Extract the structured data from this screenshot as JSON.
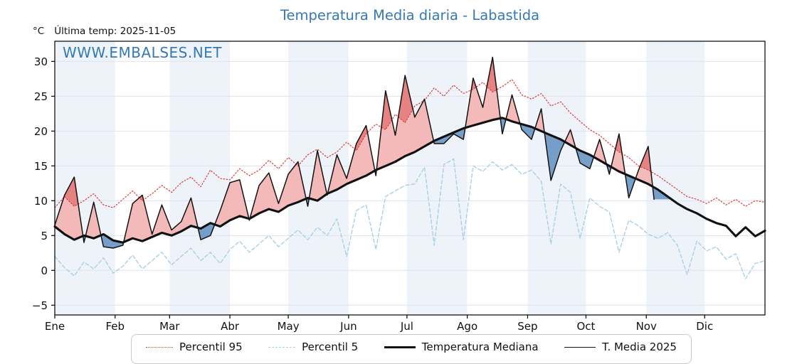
{
  "header": {
    "title": "Temperatura Media diaria - Labastida",
    "unit_label": "°C",
    "last_temp_label": "Última temp: 2025-11-05",
    "watermark": "WWW.EMBALSES.NET"
  },
  "colors": {
    "title": "#3579b4",
    "watermark": "#3579b4",
    "p95_line": "#dd3c3c",
    "p5_line": "#a8d0e6",
    "median_line": "#111111",
    "t2025_line": "#111111",
    "warm_fill": "#f3b3b1",
    "hot_fill": "#e47d7c",
    "cool_fill": "#5f8fbe",
    "band_fill": "#eef3fa",
    "grid": "#dfe3ec",
    "frame": "#000000"
  },
  "legend": {
    "items": [
      {
        "key": "p95",
        "label": "Percentil 95",
        "style": "dotted-red"
      },
      {
        "key": "p5",
        "label": "Percentil 5",
        "style": "dashed-lightblue"
      },
      {
        "key": "median",
        "label": "Temperatura Mediana",
        "style": "solid-thick-black"
      },
      {
        "key": "t2025",
        "label": "T. Media 2025",
        "style": "solid-thin-black"
      }
    ]
  },
  "chart_data": {
    "type": "line",
    "title": "Temperatura Media diaria - Labastida",
    "ylabel": "°C",
    "x_unit": "day_of_year",
    "xlim": [
      1,
      366
    ],
    "ylim": [
      -6.4,
      32.9
    ],
    "grid": true,
    "legend_position": "bottom",
    "yticks": [
      {
        "v": -5,
        "label": "−5"
      },
      {
        "v": 0,
        "label": "0"
      },
      {
        "v": 5,
        "label": "5"
      },
      {
        "v": 10,
        "label": "10"
      },
      {
        "v": 15,
        "label": "15"
      },
      {
        "v": 20,
        "label": "20"
      },
      {
        "v": 25,
        "label": "25"
      },
      {
        "v": 30,
        "label": "30"
      }
    ],
    "months": [
      {
        "abbr": "Ene",
        "start_day": 1
      },
      {
        "abbr": "Feb",
        "start_day": 32
      },
      {
        "abbr": "Mar",
        "start_day": 60
      },
      {
        "abbr": "Abr",
        "start_day": 91
      },
      {
        "abbr": "May",
        "start_day": 121
      },
      {
        "abbr": "Jun",
        "start_day": 152
      },
      {
        "abbr": "Jul",
        "start_day": 182
      },
      {
        "abbr": "Ago",
        "start_day": 213
      },
      {
        "abbr": "Sep",
        "start_day": 244
      },
      {
        "abbr": "Oct",
        "start_day": 274
      },
      {
        "abbr": "Nov",
        "start_day": 305
      },
      {
        "abbr": "Dic",
        "start_day": 335
      }
    ],
    "series": [
      {
        "name": "Percentil 95",
        "style": "dotted",
        "days": [
          1,
          6,
          11,
          16,
          21,
          26,
          31,
          36,
          41,
          46,
          51,
          56,
          61,
          66,
          71,
          76,
          81,
          86,
          91,
          96,
          101,
          106,
          111,
          116,
          121,
          126,
          131,
          136,
          141,
          146,
          151,
          156,
          161,
          166,
          171,
          176,
          181,
          186,
          191,
          196,
          201,
          206,
          211,
          216,
          221,
          226,
          231,
          236,
          241,
          246,
          251,
          256,
          261,
          266,
          271,
          276,
          281,
          286,
          291,
          296,
          301,
          306,
          311,
          316,
          321,
          326,
          331,
          336,
          341,
          346,
          351,
          356,
          361,
          366
        ],
        "values": [
          9.0,
          10.6,
          9.2,
          10.0,
          11.0,
          9.4,
          9.0,
          10.2,
          11.4,
          10.0,
          11.0,
          12.2,
          11.2,
          12.6,
          13.4,
          12.0,
          14.4,
          13.2,
          13.0,
          14.6,
          13.6,
          14.4,
          15.8,
          14.6,
          16.2,
          15.0,
          16.6,
          17.4,
          16.2,
          17.0,
          18.4,
          17.2,
          19.6,
          21.0,
          20.2,
          22.4,
          21.2,
          23.6,
          24.4,
          26.2,
          25.0,
          26.6,
          25.4,
          26.0,
          27.0,
          25.6,
          26.4,
          27.4,
          25.2,
          24.6,
          25.4,
          23.6,
          24.2,
          22.6,
          21.4,
          20.2,
          19.4,
          18.2,
          17.0,
          16.2,
          15.0,
          14.4,
          13.6,
          12.6,
          11.6,
          10.6,
          10.2,
          9.6,
          10.4,
          9.4,
          10.2,
          9.2,
          10.0,
          9.8
        ]
      },
      {
        "name": "Percentil 5",
        "style": "dashed",
        "days": [
          1,
          6,
          11,
          16,
          21,
          26,
          31,
          36,
          41,
          46,
          51,
          56,
          61,
          66,
          71,
          76,
          81,
          86,
          91,
          96,
          101,
          106,
          111,
          116,
          121,
          126,
          131,
          136,
          141,
          146,
          151,
          156,
          161,
          166,
          171,
          176,
          181,
          186,
          191,
          196,
          201,
          206,
          211,
          216,
          221,
          226,
          231,
          236,
          241,
          246,
          251,
          256,
          261,
          266,
          271,
          276,
          281,
          286,
          291,
          296,
          301,
          306,
          311,
          316,
          321,
          326,
          331,
          336,
          341,
          346,
          351,
          356,
          361,
          366
        ],
        "values": [
          2.0,
          0.4,
          -0.8,
          1.2,
          0.2,
          1.8,
          -0.4,
          0.6,
          2.2,
          0.2,
          1.4,
          2.6,
          0.8,
          2.0,
          3.2,
          1.4,
          2.6,
          1.0,
          3.0,
          4.2,
          2.6,
          3.8,
          5.0,
          3.4,
          4.6,
          5.8,
          4.4,
          6.2,
          5.0,
          7.4,
          2.0,
          8.6,
          9.4,
          3.0,
          10.6,
          11.4,
          12.2,
          12.4,
          14.8,
          3.6,
          15.2,
          16.0,
          4.4,
          15.0,
          14.2,
          15.6,
          14.4,
          15.2,
          13.8,
          14.4,
          12.8,
          3.8,
          12.4,
          11.2,
          4.6,
          10.4,
          9.2,
          8.4,
          2.6,
          7.2,
          6.4,
          5.2,
          4.6,
          5.4,
          3.6,
          -0.6,
          4.2,
          2.8,
          3.4,
          1.6,
          2.4,
          -1.2,
          1.0,
          1.4
        ]
      },
      {
        "name": "Temperatura Mediana",
        "style": "solid-thick",
        "days": [
          1,
          6,
          11,
          16,
          21,
          26,
          31,
          36,
          41,
          46,
          51,
          56,
          61,
          66,
          71,
          76,
          81,
          86,
          91,
          96,
          101,
          106,
          111,
          116,
          121,
          126,
          131,
          136,
          141,
          146,
          151,
          156,
          161,
          166,
          171,
          176,
          181,
          186,
          191,
          196,
          201,
          206,
          211,
          216,
          221,
          226,
          231,
          236,
          241,
          246,
          251,
          256,
          261,
          266,
          271,
          276,
          281,
          286,
          291,
          296,
          301,
          306,
          311,
          316,
          321,
          326,
          331,
          336,
          341,
          346,
          351,
          356,
          361,
          366
        ],
        "values": [
          6.3,
          5.2,
          4.4,
          5.0,
          4.6,
          5.2,
          4.3,
          4.0,
          4.6,
          4.2,
          4.8,
          5.4,
          5.0,
          5.6,
          6.4,
          6.0,
          6.8,
          6.3,
          7.2,
          7.8,
          7.4,
          8.2,
          8.8,
          8.4,
          9.3,
          9.8,
          10.4,
          10.0,
          11.0,
          11.6,
          12.4,
          13.0,
          13.6,
          14.4,
          15.0,
          15.6,
          16.4,
          17.0,
          17.8,
          18.6,
          19.2,
          19.8,
          20.4,
          20.8,
          21.2,
          21.6,
          21.9,
          21.4,
          21.0,
          20.6,
          20.0,
          19.4,
          18.8,
          18.0,
          17.2,
          16.6,
          15.8,
          15.0,
          14.2,
          13.6,
          13.0,
          12.4,
          11.6,
          10.6,
          9.6,
          8.8,
          8.2,
          7.4,
          6.8,
          6.4,
          4.9,
          6.2,
          4.9,
          5.7
        ]
      },
      {
        "name": "T. Media 2025",
        "style": "solid-thin",
        "last_day_label": "2025-11-05",
        "days": [
          1,
          6,
          11,
          16,
          21,
          26,
          31,
          36,
          41,
          46,
          51,
          56,
          61,
          66,
          71,
          76,
          81,
          86,
          91,
          96,
          101,
          106,
          111,
          116,
          121,
          126,
          131,
          136,
          141,
          146,
          151,
          156,
          161,
          166,
          171,
          176,
          181,
          186,
          191,
          196,
          201,
          206,
          211,
          216,
          221,
          226,
          231,
          236,
          241,
          246,
          251,
          256,
          261,
          266,
          271,
          276,
          281,
          286,
          291,
          296,
          301,
          306,
          309
        ],
        "values": [
          6.5,
          10.8,
          13.4,
          4.0,
          9.8,
          3.4,
          3.2,
          3.6,
          9.6,
          10.8,
          5.2,
          9.4,
          5.8,
          7.0,
          10.4,
          4.4,
          5.0,
          8.6,
          12.6,
          13.0,
          7.2,
          12.2,
          14.0,
          9.6,
          13.8,
          15.6,
          9.2,
          17.2,
          10.8,
          16.6,
          13.2,
          18.2,
          20.8,
          13.6,
          25.8,
          19.4,
          28.0,
          22.0,
          24.6,
          18.2,
          18.2,
          19.6,
          18.8,
          27.6,
          23.4,
          30.6,
          19.6,
          25.2,
          20.2,
          18.8,
          23.2,
          12.9,
          17.2,
          20.2,
          15.4,
          14.6,
          18.8,
          13.8,
          19.6,
          10.4,
          14.4,
          17.8,
          10.2
        ]
      }
    ]
  }
}
